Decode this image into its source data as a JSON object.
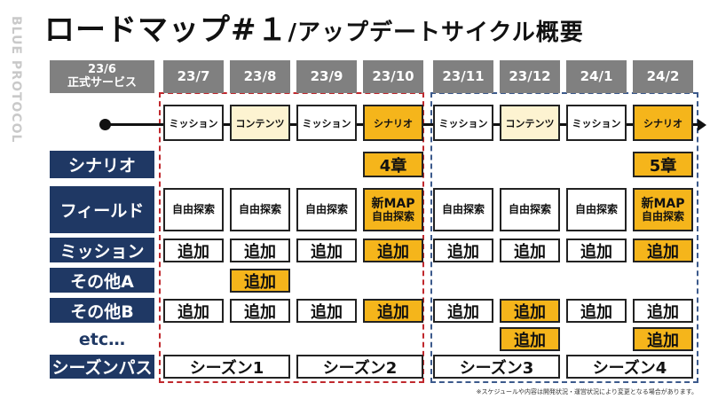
{
  "logo": "BLUE PROTOCOL",
  "title": {
    "main": "ロードマップ#１",
    "sub": "/アップデートサイクル概要"
  },
  "launch": {
    "date": "23/6",
    "label": "正式サービス"
  },
  "months": [
    "23/7",
    "23/8",
    "23/9",
    "23/10",
    "23/11",
    "23/12",
    "24/1",
    "24/2"
  ],
  "row_labels": {
    "scenario": "シナリオ",
    "field": "フィールド",
    "mission": "ミッション",
    "other_a": "その他A",
    "other_b": "その他B",
    "etc": "etc…",
    "season_pass": "シーズンパス"
  },
  "stages": [
    "ミッション",
    "コンテンツ",
    "ミッション",
    "シナリオ",
    "ミッション",
    "コンテンツ",
    "ミッション",
    "シナリオ"
  ],
  "scenario_cells": [
    {
      "col": 3,
      "text": "4章"
    },
    {
      "col": 7,
      "text": "5章"
    }
  ],
  "field_cells": [
    {
      "col": 0,
      "lines": [
        "自由探索"
      ]
    },
    {
      "col": 1,
      "lines": [
        "自由探索"
      ]
    },
    {
      "col": 2,
      "lines": [
        "自由探索"
      ]
    },
    {
      "col": 3,
      "lines": [
        "新MAP",
        "自由探索"
      ]
    },
    {
      "col": 4,
      "lines": [
        "自由探索"
      ]
    },
    {
      "col": 5,
      "lines": [
        "自由探索"
      ]
    },
    {
      "col": 6,
      "lines": [
        "自由探索"
      ]
    },
    {
      "col": 7,
      "lines": [
        "新MAP",
        "自由探索"
      ]
    }
  ],
  "add_label": "追加",
  "mission_cols": [
    0,
    1,
    2,
    3,
    4,
    5,
    6,
    7
  ],
  "other_a_cols": [
    1
  ],
  "other_b_cols": [
    0,
    1,
    2,
    3,
    4,
    5,
    6,
    7
  ],
  "etc_cols": [
    5,
    7
  ],
  "seasons": [
    "シーズン1",
    "シーズン2",
    "シーズン3",
    "シーズン4"
  ],
  "note": "※スケジュールや内容は開発状況・運営状況により変更となる場合があります。",
  "colors": {
    "navy": "#1f3864",
    "header_gray": "#808080",
    "highlight": "#f5b51b",
    "content_tint": "#fdf3d1",
    "red_dash": "#c0282d",
    "blue_dash": "#3c5a8c"
  }
}
